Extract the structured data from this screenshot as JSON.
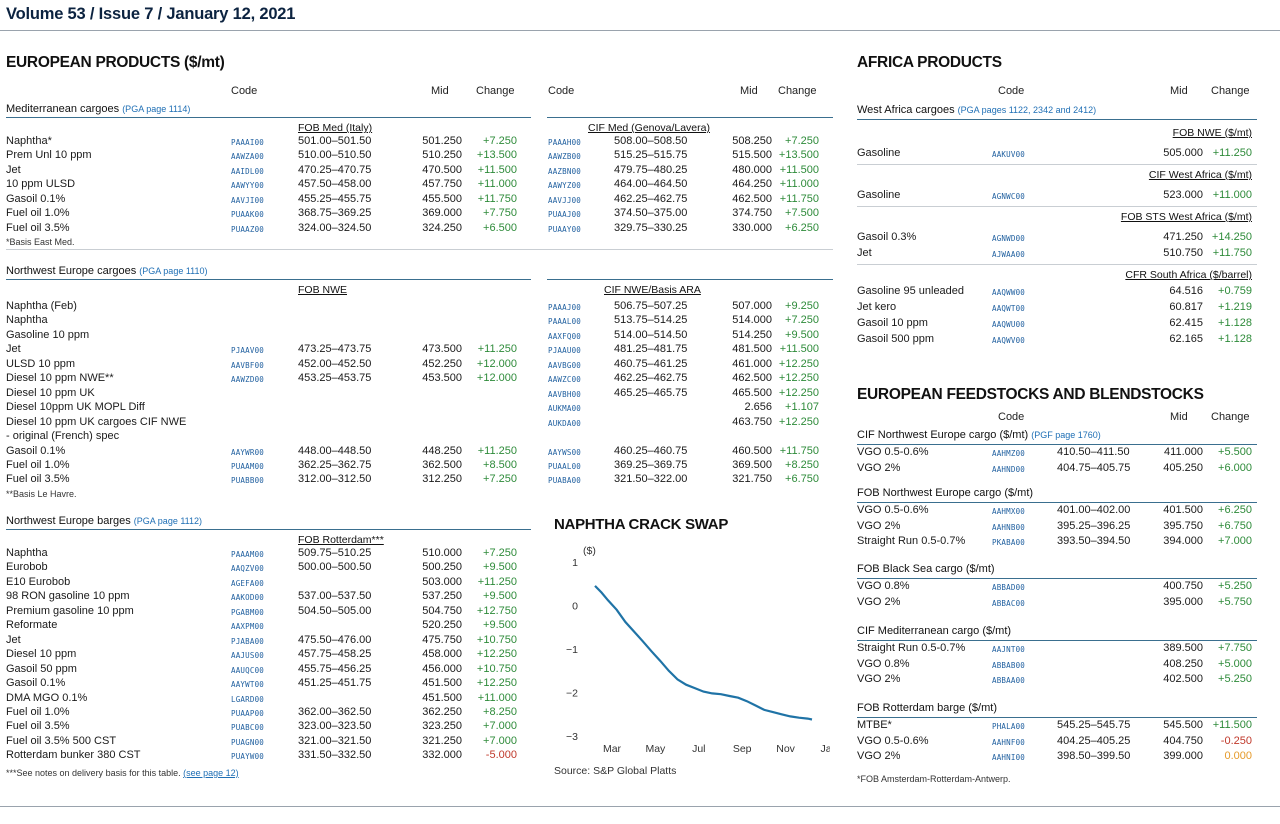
{
  "header": {
    "volume": "Volume 53 / Issue 7 / January 12, 2021"
  },
  "europe": {
    "title": "EUROPEAN PRODUCTS ($/mt)",
    "col": {
      "code": "Code",
      "mid": "Mid",
      "change": "Change"
    },
    "med": {
      "title": "Mediterranean cargoes",
      "pga": "(PGA page 1114)",
      "fob": "FOB Med (Italy)",
      "cif": "CIF Med (Genova/Lavera)",
      "rows": [
        [
          "Naphtha*",
          "PAAAI00",
          "501.00–501.50",
          "501.250",
          "+7.250",
          "PAAAH00",
          "508.00–508.50",
          "508.250",
          "+7.250"
        ],
        [
          "Prem Unl 10 ppm",
          "AAWZA00",
          "510.00–510.50",
          "510.250",
          "+13.500",
          "AAWZB00",
          "515.25–515.75",
          "515.500",
          "+13.500"
        ],
        [
          "Jet",
          "AAIDL00",
          "470.25–470.75",
          "470.500",
          "+11.500",
          "AAZBN00",
          "479.75–480.25",
          "480.000",
          "+11.500"
        ],
        [
          "10 ppm ULSD",
          "AAWYY00",
          "457.50–458.00",
          "457.750",
          "+11.000",
          "AAWYZ00",
          "464.00–464.50",
          "464.250",
          "+11.000"
        ],
        [
          "Gasoil 0.1%",
          "AAVJI00",
          "455.25–455.75",
          "455.500",
          "+11.750",
          "AAVJJ00",
          "462.25–462.75",
          "462.500",
          "+11.750"
        ],
        [
          "Fuel oil 1.0%",
          "PUAAK00",
          "368.75–369.25",
          "369.000",
          "+7.750",
          "PUAAJ00",
          "374.50–375.00",
          "374.750",
          "+7.500"
        ],
        [
          "Fuel oil 3.5%",
          "PUAAZ00",
          "324.00–324.50",
          "324.250",
          "+6.500",
          "PUAAY00",
          "329.75–330.25",
          "330.000",
          "+6.250"
        ]
      ],
      "note": "*Basis East Med."
    },
    "nwe": {
      "title": "Northwest Europe cargoes",
      "pga": "(PGA page 1110)",
      "fob": "FOB NWE",
      "cif": "CIF NWE/Basis ARA",
      "rows": [
        [
          "Naphtha (Feb)",
          "",
          "",
          "",
          "",
          "PAAAJ00",
          "506.75–507.25",
          "507.000",
          "+9.250"
        ],
        [
          "Naphtha",
          "",
          "",
          "",
          "",
          "PAAAL00",
          "513.75–514.25",
          "514.000",
          "+7.250"
        ],
        [
          "Gasoline 10 ppm",
          "",
          "",
          "",
          "",
          "AAXFQ00",
          "514.00–514.50",
          "514.250",
          "+9.500"
        ],
        [
          "Jet",
          "PJAAV00",
          "473.25–473.75",
          "473.500",
          "+11.250",
          "PJAAU00",
          "481.25–481.75",
          "481.500",
          "+11.500"
        ],
        [
          "ULSD 10 ppm",
          "AAVBF00",
          "452.00–452.50",
          "452.250",
          "+12.000",
          "AAVBG00",
          "460.75–461.25",
          "461.000",
          "+12.250"
        ],
        [
          "Diesel 10 ppm NWE**",
          "AAWZD00",
          "453.25–453.75",
          "453.500",
          "+12.000",
          "AAWZC00",
          "462.25–462.75",
          "462.500",
          "+12.250"
        ],
        [
          "Diesel 10 ppm UK",
          "",
          "",
          "",
          "",
          "AAVBH00",
          "465.25–465.75",
          "465.500",
          "+12.250"
        ],
        [
          "Diesel 10ppm UK MOPL Diff",
          "",
          "",
          "",
          "",
          "AUKMA00",
          "",
          "2.656",
          "+1.107"
        ],
        [
          "Diesel 10 ppm UK cargoes CIF NWE",
          "",
          "",
          "",
          "",
          "AUKDA00",
          "",
          "463.750",
          "+12.250"
        ],
        [
          "- original (French) spec",
          "",
          "",
          "",
          "",
          "",
          "",
          "",
          ""
        ],
        [
          "Gasoil 0.1%",
          "AAYWR00",
          "448.00–448.50",
          "448.250",
          "+11.250",
          "AAYWS00",
          "460.25–460.75",
          "460.500",
          "+11.750"
        ],
        [
          "Fuel oil 1.0%",
          "PUAAM00",
          "362.25–362.75",
          "362.500",
          "+8.500",
          "PUAAL00",
          "369.25–369.75",
          "369.500",
          "+8.250"
        ],
        [
          "Fuel oil 3.5%",
          "PUABB00",
          "312.00–312.50",
          "312.250",
          "+7.250",
          "PUABA00",
          "321.50–322.00",
          "321.750",
          "+6.750"
        ]
      ],
      "note": "**Basis Le Havre."
    },
    "barges": {
      "title": "Northwest Europe barges",
      "pga": "(PGA page 1112)",
      "fob": "FOB Rotterdam***",
      "rows": [
        [
          "Naphtha",
          "PAAAM00",
          "509.75–510.25",
          "510.000",
          "+7.250"
        ],
        [
          "Eurobob",
          "AAQZV00",
          "500.00–500.50",
          "500.250",
          "+9.500"
        ],
        [
          "E10 Eurobob",
          "AGEFA00",
          "",
          "503.000",
          "+11.250"
        ],
        [
          "98 RON gasoline 10 ppm",
          "AAKOD00",
          "537.00–537.50",
          "537.250",
          "+9.500"
        ],
        [
          "Premium gasoline 10 ppm",
          "PGABM00",
          "504.50–505.00",
          "504.750",
          "+12.750"
        ],
        [
          "Reformate",
          "AAXPM00",
          "",
          "520.250",
          "+9.500"
        ],
        [
          "Jet",
          "PJABA00",
          "475.50–476.00",
          "475.750",
          "+10.750"
        ],
        [
          "Diesel 10 ppm",
          "AAJUS00",
          "457.75–458.25",
          "458.000",
          "+12.250"
        ],
        [
          "Gasoil 50 ppm",
          "AAUQC00",
          "455.75–456.25",
          "456.000",
          "+10.750"
        ],
        [
          "Gasoil 0.1%",
          "AAYWT00",
          "451.25–451.75",
          "451.500",
          "+12.250"
        ],
        [
          "DMA MGO 0.1%",
          "LGARD00",
          "",
          "451.500",
          "+11.000"
        ],
        [
          "Fuel oil 1.0%",
          "PUAAP00",
          "362.00–362.50",
          "362.250",
          "+8.250"
        ],
        [
          "Fuel oil 3.5%",
          "PUABC00",
          "323.00–323.50",
          "323.250",
          "+7.000"
        ],
        [
          "Fuel oil 3.5% 500 CST",
          "PUAGN00",
          "321.00–321.50",
          "321.250",
          "+7.000"
        ],
        [
          "Rotterdam bunker 380 CST",
          "PUAYW00",
          "331.50–332.50",
          "332.000",
          "-5.000"
        ]
      ],
      "note": "***See notes on delivery basis for this table.",
      "note_link": "(see page 12)"
    }
  },
  "chart_data": {
    "type": "line",
    "title": "NAPHTHA CRACK SWAP",
    "ylabel": "($)",
    "ylim": [
      -3,
      1
    ],
    "yticks": [
      1,
      0,
      -1,
      -2,
      -3
    ],
    "xticks": [
      "Mar",
      "May",
      "Jul",
      "Sep",
      "Nov",
      "Jan"
    ],
    "x": [
      0,
      0.15,
      0.3,
      0.5,
      0.7,
      0.9,
      1.1,
      1.3,
      1.5,
      1.7,
      1.9,
      2.1,
      2.3,
      2.5,
      2.7,
      2.9,
      3.1,
      3.3,
      3.5,
      3.7,
      3.9,
      4.1,
      4.3,
      4.5,
      4.7,
      4.9,
      5.0
    ],
    "values": [
      0.45,
      0.3,
      0.12,
      -0.1,
      -0.38,
      -0.6,
      -0.82,
      -1.05,
      -1.27,
      -1.5,
      -1.7,
      -1.82,
      -1.9,
      -1.98,
      -2.02,
      -2.04,
      -2.08,
      -2.12,
      -2.2,
      -2.3,
      -2.4,
      -2.45,
      -2.5,
      -2.55,
      -2.58,
      -2.6,
      -2.62
    ],
    "source": "Source: S&P Global Platts"
  },
  "africa": {
    "title": "AFRICA PRODUCTS",
    "col": {
      "code": "Code",
      "mid": "Mid",
      "change": "Change"
    },
    "sub": "West Africa cargoes",
    "pga": "(PGA pages 1122, 2342 and 2412)",
    "groups": [
      {
        "title": "FOB NWE ($/mt)",
        "rows": [
          [
            "Gasoline",
            "AAKUV00",
            "505.000",
            "+11.250"
          ]
        ]
      },
      {
        "title": "CIF West Africa ($/mt)",
        "rows": [
          [
            "Gasoline",
            "AGNWC00",
            "523.000",
            "+11.000"
          ]
        ]
      },
      {
        "title": "FOB STS West Africa ($/mt)",
        "rows": [
          [
            "Gasoil 0.3%",
            "AGNWD00",
            "471.250",
            "+14.250"
          ],
          [
            "Jet",
            "AJWAA00",
            "510.750",
            "+11.750"
          ]
        ]
      },
      {
        "title": "CFR South Africa ($/barrel)",
        "rows": [
          [
            "Gasoline 95 unleaded",
            "AAQWW00",
            "64.516",
            "+0.759"
          ],
          [
            "Jet kero",
            "AAQWT00",
            "60.817",
            "+1.219"
          ],
          [
            "Gasoil 10 ppm",
            "AAQWU00",
            "62.415",
            "+1.128"
          ],
          [
            "Gasoil 500 ppm",
            "AAQWV00",
            "62.165",
            "+1.128"
          ]
        ]
      }
    ]
  },
  "feed": {
    "title": "EUROPEAN FEEDSTOCKS AND BLENDSTOCKS",
    "col": {
      "code": "Code",
      "mid": "Mid",
      "change": "Change"
    },
    "groups": [
      {
        "title": "CIF Northwest Europe cargo ($/mt)",
        "pga": "(PGF page 1760)",
        "rows": [
          [
            "VGO 0.5-0.6%",
            "AAHMZ00",
            "410.50–411.50",
            "411.000",
            "+5.500"
          ],
          [
            "VGO 2%",
            "AAHND00",
            "404.75–405.75",
            "405.250",
            "+6.000"
          ]
        ]
      },
      {
        "title": "FOB Northwest Europe cargo ($/mt)",
        "pga": "",
        "rows": [
          [
            "VGO 0.5-0.6%",
            "AAHMX00",
            "401.00–402.00",
            "401.500",
            "+6.250"
          ],
          [
            "VGO 2%",
            "AAHNB00",
            "395.25–396.25",
            "395.750",
            "+6.750"
          ],
          [
            "Straight Run 0.5-0.7%",
            "PKABA00",
            "393.50–394.50",
            "394.000",
            "+7.000"
          ]
        ]
      },
      {
        "title": "FOB Black Sea cargo ($/mt)",
        "pga": "",
        "rows": [
          [
            "VGO 0.8%",
            "ABBAD00",
            "",
            "400.750",
            "+5.250"
          ],
          [
            "VGO 2%",
            "ABBAC00",
            "",
            "395.000",
            "+5.750"
          ]
        ]
      },
      {
        "title": "CIF Mediterranean cargo ($/mt)",
        "pga": "",
        "rows": [
          [
            "Straight Run 0.5-0.7%",
            "AAJNT00",
            "",
            "389.500",
            "+7.750"
          ],
          [
            "VGO 0.8%",
            "ABBAB00",
            "",
            "408.250",
            "+5.000"
          ],
          [
            "VGO 2%",
            "ABBAA00",
            "",
            "402.500",
            "+5.250"
          ]
        ]
      },
      {
        "title": "FOB Rotterdam barge ($/mt)",
        "pga": "",
        "rows": [
          [
            "MTBE*",
            "PHALA00",
            "545.25–545.75",
            "545.500",
            "+11.500"
          ],
          [
            "VGO 0.5-0.6%",
            "AAHNF00",
            "404.25–405.25",
            "404.750",
            "-0.250"
          ],
          [
            "VGO 2%",
            "AAHNI00",
            "398.50–399.50",
            "399.000",
            "0.000"
          ]
        ]
      }
    ],
    "note": "*FOB Amsterdam-Rotterdam-Antwerp."
  }
}
